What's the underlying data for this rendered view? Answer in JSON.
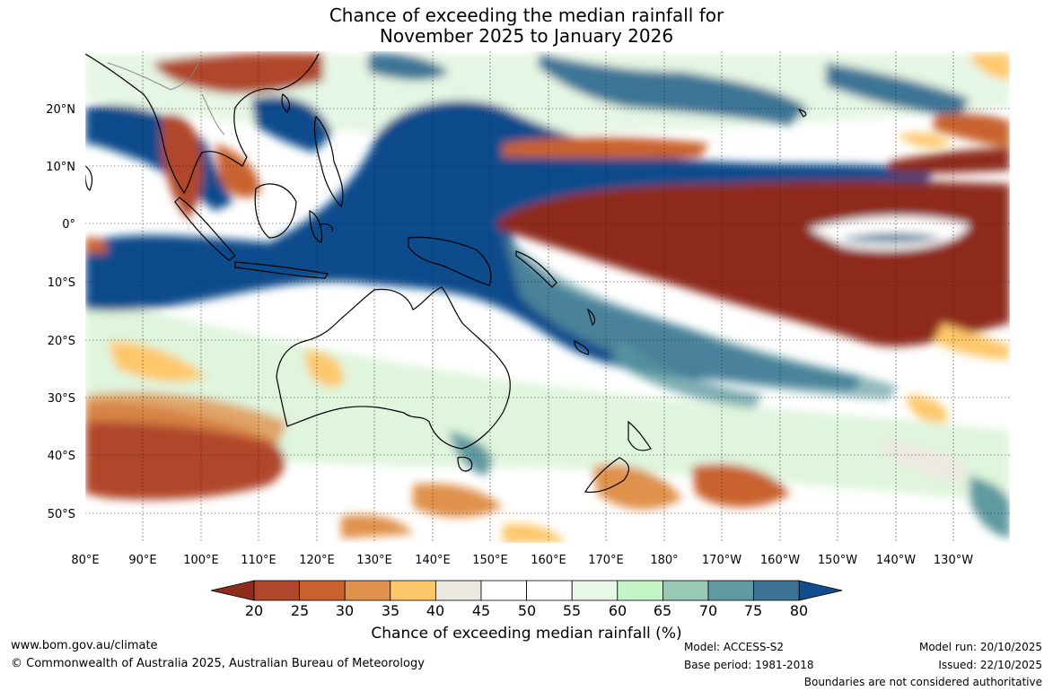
{
  "title": {
    "line1": "Chance of exceeding the median rainfall for",
    "line2": "November 2025 to January 2026"
  },
  "map": {
    "lon_labels": [
      "80°E",
      "90°E",
      "100°E",
      "110°E",
      "120°E",
      "130°E",
      "140°E",
      "150°E",
      "160°E",
      "170°E",
      "180°",
      "170°W",
      "160°W",
      "150°W",
      "140°W",
      "130°W"
    ],
    "lat_labels": [
      "20°N",
      "10°N",
      "0°",
      "10°S",
      "20°S",
      "30°S",
      "40°S",
      "50°S"
    ]
  },
  "colorbar": {
    "title": "Chance of exceeding median rainfall (%)",
    "ticks": [
      "20",
      "25",
      "30",
      "35",
      "40",
      "45",
      "50",
      "55",
      "60",
      "65",
      "70",
      "75",
      "80"
    ],
    "colors": [
      "#8e2c1e",
      "#b0462a",
      "#c9622f",
      "#e0914b",
      "#fec76a",
      "#ece9e1",
      "#ffffff",
      "#ffffff",
      "#e9f7e9",
      "#c3f5c7",
      "#97c9b4",
      "#5f9aa0",
      "#3d7496",
      "#114c8c"
    ]
  },
  "footer": {
    "website": "www.bom.gov.au/climate",
    "copyright": "© Commonwealth of Australia 2025, Australian Bureau of Meteorology",
    "model": "Model: ACCESS-S2",
    "base_period": "Base period: 1981-2018",
    "model_run": "Model run: 20/10/2025",
    "issued": "Issued: 22/10/2025",
    "disclaimer": "Boundaries are not considered authoritative"
  }
}
